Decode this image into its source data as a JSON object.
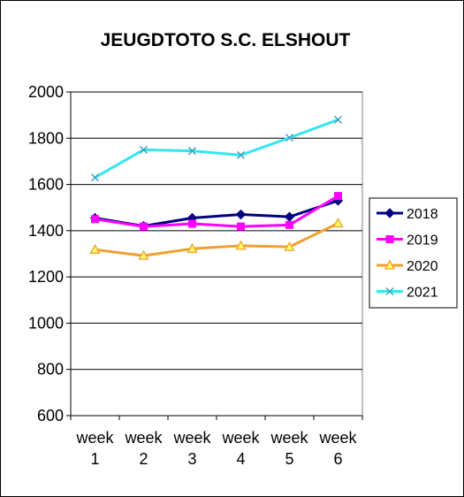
{
  "chart_data": {
    "type": "line",
    "title": "JEUGDTOTO S.C. ELSHOUT",
    "xlabel": "",
    "ylabel": "",
    "categories": [
      [
        "week",
        "1"
      ],
      [
        "week",
        "2"
      ],
      [
        "week",
        "3"
      ],
      [
        "week",
        "4"
      ],
      [
        "week",
        "5"
      ],
      [
        "week",
        "6"
      ]
    ],
    "ylim": [
      600,
      2000
    ],
    "yticks": [
      600,
      800,
      1000,
      1200,
      1400,
      1600,
      1800,
      2000
    ],
    "grid": true,
    "legend_position": "right",
    "series": [
      {
        "name": "2018",
        "color": "#000080",
        "marker": "diamond",
        "values": [
          1455,
          1420,
          1455,
          1470,
          1460,
          1530
        ]
      },
      {
        "name": "2019",
        "color": "#ff00ff",
        "marker": "square",
        "values": [
          1450,
          1418,
          1430,
          1418,
          1425,
          1550
        ]
      },
      {
        "name": "2020",
        "color": "#f0a030",
        "marker": "triangle",
        "values": [
          1318,
          1292,
          1322,
          1335,
          1330,
          1432
        ]
      },
      {
        "name": "2021",
        "color": "#33e6f0",
        "marker": "x",
        "values": [
          1630,
          1750,
          1745,
          1727,
          1802,
          1880
        ]
      }
    ]
  }
}
